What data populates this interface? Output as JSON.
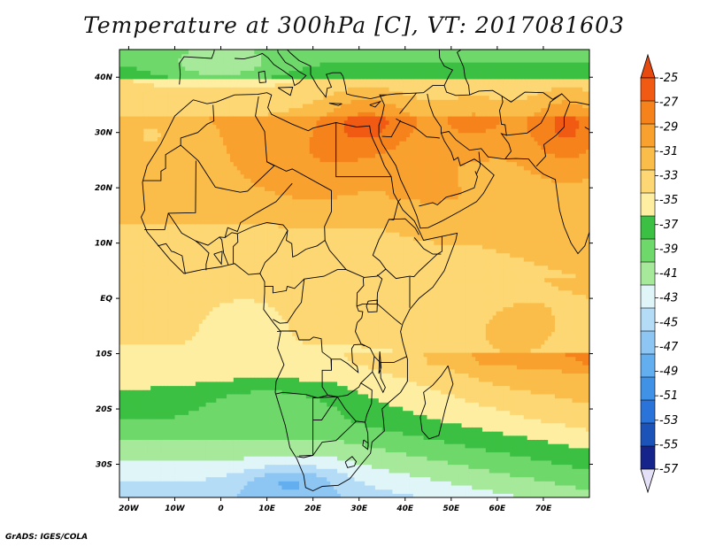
{
  "title": "Temperature at 300hPa [C], VT: 2017081603",
  "credit": "GrADS: IGES/COLA",
  "map": {
    "lon_range": [
      -22,
      80
    ],
    "lat_range": [
      -36,
      45
    ],
    "lon_ticks": [
      {
        "value": -20,
        "label": "20W"
      },
      {
        "value": -10,
        "label": "10W"
      },
      {
        "value": 0,
        "label": "0"
      },
      {
        "value": 10,
        "label": "10E"
      },
      {
        "value": 20,
        "label": "20E"
      },
      {
        "value": 30,
        "label": "30E"
      },
      {
        "value": 40,
        "label": "40E"
      },
      {
        "value": 50,
        "label": "50E"
      },
      {
        "value": 60,
        "label": "60E"
      },
      {
        "value": 70,
        "label": "70E"
      }
    ],
    "lat_ticks": [
      {
        "value": 40,
        "label": "40N"
      },
      {
        "value": 30,
        "label": "30N"
      },
      {
        "value": 20,
        "label": "20N"
      },
      {
        "value": 10,
        "label": "10N"
      },
      {
        "value": 0,
        "label": "EQ"
      },
      {
        "value": -10,
        "label": "10S"
      },
      {
        "value": -20,
        "label": "20S"
      },
      {
        "value": -30,
        "label": "30S"
      }
    ]
  },
  "colorbar": {
    "labels": [
      "-25",
      "-27",
      "-29",
      "-31",
      "-33",
      "-35",
      "-37",
      "-39",
      "-41",
      "-43",
      "-45",
      "-47",
      "-49",
      "-51",
      "-53",
      "-55",
      "-57"
    ],
    "top_arrow_color": "#e64a0f",
    "bottom_arrow_color": "#e3e0f7",
    "colors": [
      "#f05a12",
      "#f6821c",
      "#f9a12e",
      "#fbbd4a",
      "#fdd773",
      "#fdeea2",
      "#3cc043",
      "#6fd86a",
      "#a6e99a",
      "#dff5f7",
      "#b5dcf7",
      "#8ec6f3",
      "#63aeee",
      "#3f92e6",
      "#2a73d8",
      "#1c53b8",
      "#15248a"
    ]
  },
  "field": {
    "color_stops": [
      {
        "value": -25,
        "color": "#f05a12"
      },
      {
        "value": -27,
        "color": "#f6821c"
      },
      {
        "value": -29,
        "color": "#f9a12e"
      },
      {
        "value": -31,
        "color": "#fbbd4a"
      },
      {
        "value": -33,
        "color": "#fdd773"
      },
      {
        "value": -35,
        "color": "#fdeea2"
      },
      {
        "value": -37,
        "color": "#3cc043"
      },
      {
        "value": -39,
        "color": "#6fd86a"
      },
      {
        "value": -41,
        "color": "#a6e99a"
      },
      {
        "value": -43,
        "color": "#dff5f7"
      },
      {
        "value": -45,
        "color": "#b5dcf7"
      },
      {
        "value": -47,
        "color": "#8ec6f3"
      },
      {
        "value": -49,
        "color": "#63aeee"
      }
    ],
    "features": [
      {
        "lon": 32,
        "lat": 32,
        "amp": 4.5,
        "sx": 10,
        "sy": 6
      },
      {
        "lon": 75,
        "lat": 31,
        "amp": 4.5,
        "sx": 8,
        "sy": 7
      },
      {
        "lon": 55,
        "lat": 32,
        "amp": 2.5,
        "sx": 10,
        "sy": 5
      },
      {
        "lon": 20,
        "lat": 25,
        "amp": 2.0,
        "sx": 14,
        "sy": 7
      },
      {
        "lon": 45,
        "lat": 18,
        "amp": 1.5,
        "sx": 8,
        "sy": 6
      },
      {
        "lon": 62,
        "lat": -8,
        "amp": 1.5,
        "sx": 14,
        "sy": 8
      },
      {
        "lon": 0,
        "lat": 42,
        "amp": -3.5,
        "sx": 12,
        "sy": 3
      },
      {
        "lon": -15,
        "lat": 30,
        "amp": -2.0,
        "sx": 6,
        "sy": 5
      },
      {
        "lon": 5,
        "lat": -4,
        "amp": -1.2,
        "sx": 8,
        "sy": 5
      },
      {
        "lon": 15,
        "lat": -33,
        "amp": -4.0,
        "sx": 10,
        "sy": 3
      },
      {
        "lon": 10,
        "lat": -19,
        "amp": -2.5,
        "sx": 14,
        "sy": 4
      }
    ]
  }
}
